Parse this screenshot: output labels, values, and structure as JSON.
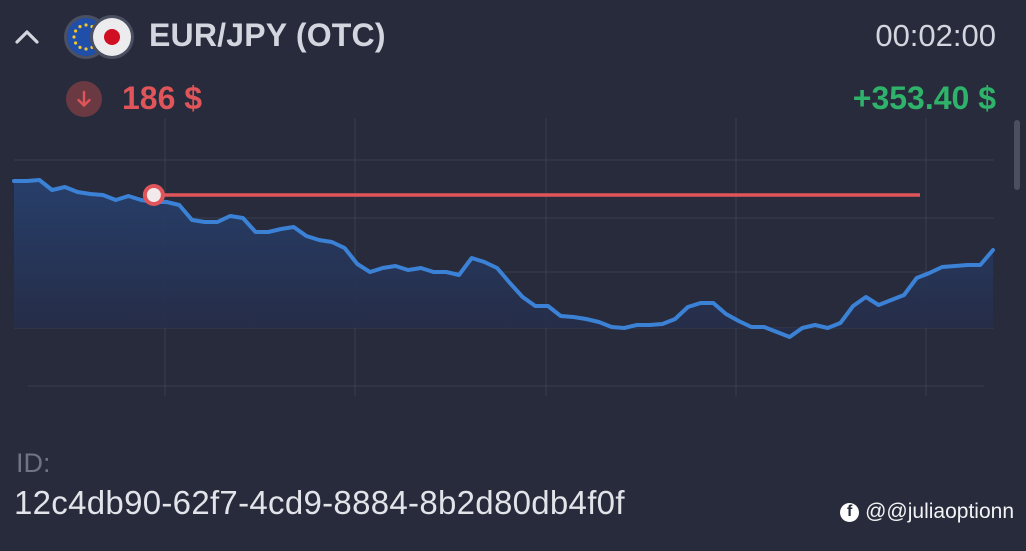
{
  "header": {
    "pair_title": "EUR/JPY (OTC)",
    "timer": "00:02:00",
    "icons": {
      "collapse": "chevron-up-icon",
      "flag_eu": "eu-flag-icon",
      "flag_jp": "japan-flag-icon"
    }
  },
  "trade": {
    "direction": "down",
    "direction_icon": "arrow-down-icon",
    "amount": "186 $",
    "profit": "+353.40 $",
    "colors": {
      "loss": "#e0555a",
      "profit": "#2fb26a",
      "line": "#3b82d6",
      "strike": "#e0555a"
    }
  },
  "chart_data": {
    "type": "line",
    "y": [
      181,
      181,
      180,
      190,
      187,
      192,
      194,
      195,
      200,
      196,
      200,
      202,
      202,
      205,
      220,
      222,
      222,
      216,
      218,
      232,
      232,
      229,
      227,
      236,
      240,
      242,
      248,
      264,
      272,
      268,
      266,
      270,
      268,
      272,
      272,
      275,
      258,
      262,
      268,
      283,
      297,
      306,
      306,
      316,
      317,
      319,
      322,
      327,
      328,
      325,
      325,
      324,
      319,
      307,
      303,
      303,
      314,
      321,
      327,
      327,
      332,
      337,
      328,
      325,
      328,
      323,
      306,
      297,
      305,
      300,
      295,
      278,
      273,
      267,
      266,
      265,
      265,
      250
    ],
    "strike_level": 195,
    "entry_index": 11,
    "grid": true
  },
  "details": {
    "id_label": "ID:",
    "id_value": "12c4db90-62f7-4cd9-8884-8b2d80db4f0f"
  },
  "watermark": {
    "icon": "facebook-icon",
    "text": "@@juliaoptionn"
  }
}
